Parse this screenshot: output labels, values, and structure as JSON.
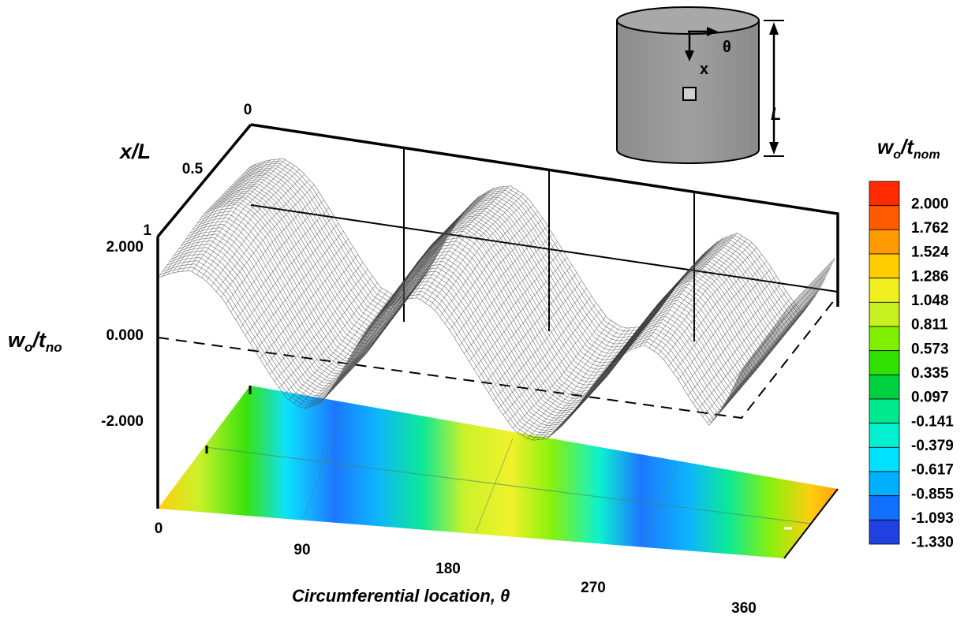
{
  "chart_data": {
    "type": "surface",
    "x_axis": {
      "label": "Circumferential location, θ",
      "ticks": [
        "0",
        "90",
        "180",
        "270",
        "360"
      ],
      "range": [
        0,
        360
      ]
    },
    "depth_axis": {
      "label": "x/L",
      "ticks": [
        "0",
        "0.5",
        "1"
      ],
      "range": [
        0,
        1
      ]
    },
    "z_axis": {
      "label_main": "w",
      "label_sub1": "o",
      "label_slash": "/t",
      "label_sub2": "no",
      "ticks": [
        "2.000",
        "0.000",
        "-2.000"
      ],
      "range": [
        -2.0,
        2.0
      ]
    },
    "colorbar": {
      "title_main": "w",
      "title_sub1": "o",
      "title_slash": "/t",
      "title_sub2": "nom",
      "levels": [
        "2.000",
        "1.762",
        "1.524",
        "1.286",
        "1.048",
        "0.811",
        "0.573",
        "0.335",
        "0.097",
        "-0.141",
        "-0.379",
        "-0.617",
        "-0.855",
        "-1.093",
        "-1.330"
      ],
      "colors": [
        "#ff2a00",
        "#ff5a00",
        "#ff9a00",
        "#ffcc00",
        "#f0f020",
        "#c8f020",
        "#80f000",
        "#30e000",
        "#00d040",
        "#00e890",
        "#00f0d0",
        "#00e0ff",
        "#00b0ff",
        "#1070ff",
        "#2040e0"
      ]
    },
    "surface_profile": {
      "theta": [
        0,
        10,
        20,
        30,
        40,
        50,
        60,
        70,
        80,
        90,
        100,
        110,
        120,
        130,
        140,
        150,
        160,
        170,
        180,
        190,
        200,
        210,
        220,
        230,
        240,
        250,
        260,
        270,
        280,
        290,
        300,
        310,
        320,
        330,
        340,
        350,
        360
      ],
      "w_mid": [
        1.5,
        1.7,
        1.8,
        1.6,
        1.2,
        0.6,
        0.0,
        -0.6,
        -1.1,
        -1.3,
        -1.1,
        -0.5,
        0.3,
        1.0,
        1.5,
        1.8,
        1.9,
        1.7,
        1.2,
        0.6,
        0.0,
        -0.6,
        -1.1,
        -1.3,
        -1.2,
        -0.8,
        -0.2,
        0.4,
        0.9,
        1.3,
        1.5,
        1.3,
        0.8,
        0.2,
        -0.3,
        0.3,
        1.2
      ]
    },
    "inset": {
      "theta_label": "θ",
      "x_label": "x",
      "length_label": "L"
    }
  }
}
